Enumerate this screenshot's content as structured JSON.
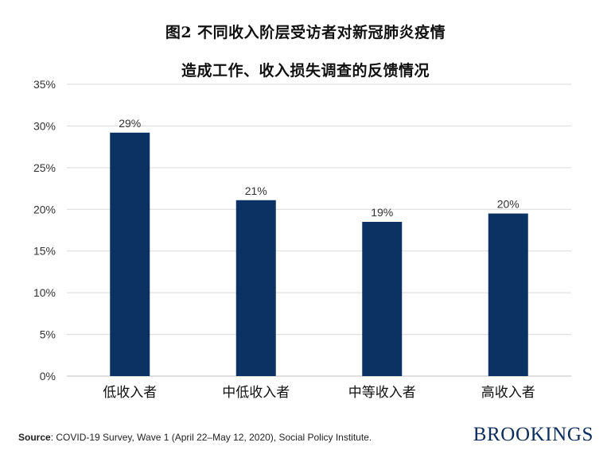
{
  "chart_data": {
    "type": "bar",
    "title_lines": [
      "图2 不同收入阶层受访者对新冠肺炎疫情",
      "造成工作、收入损失调查的反馈情况"
    ],
    "categories": [
      "低收入者",
      "中低收入者",
      "中等收入者",
      "高收入者"
    ],
    "values": [
      29.2,
      21.1,
      18.5,
      19.5
    ],
    "data_labels": [
      "29%",
      "21%",
      "19%",
      "20%"
    ],
    "ylim": [
      0,
      35
    ],
    "yticks": [
      "0%",
      "5%",
      "10%",
      "15%",
      "20%",
      "25%",
      "30%",
      "35%"
    ],
    "ytick_values": [
      0,
      5,
      10,
      15,
      20,
      25,
      30,
      35
    ],
    "grid": true,
    "bar_color": "#0b3263",
    "grid_color": "#d9d9d9"
  },
  "source": {
    "label": "Source",
    "text": ": COVID-19 Survey, Wave 1 (April 22–May 12, 2020), Social Policy Institute."
  },
  "brand": {
    "logo_text": "BROOKINGS",
    "color": "#0b2d5c"
  }
}
